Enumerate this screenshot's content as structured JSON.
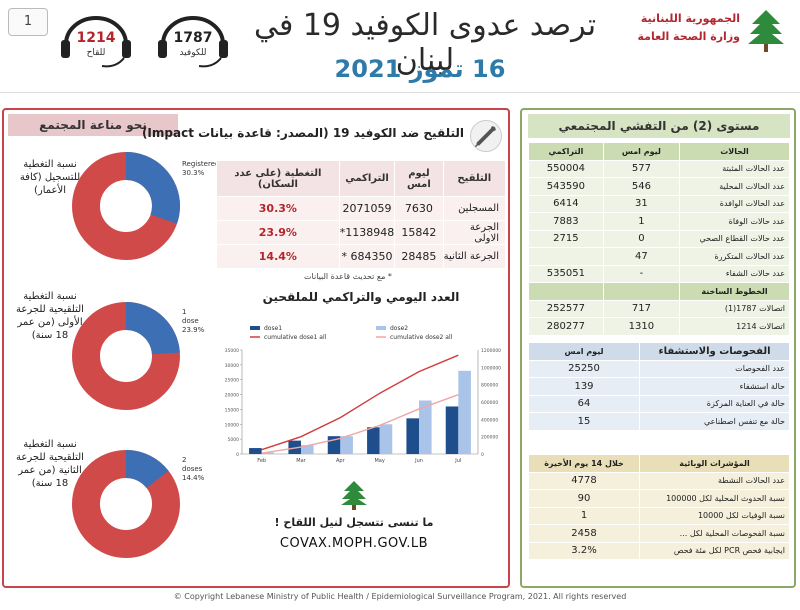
{
  "page_number": "1",
  "hotlines": [
    {
      "number": "1787",
      "label": "للكوفيد"
    },
    {
      "number": "1214",
      "label": "للقاح"
    }
  ],
  "title": "ترصد عدوى الكوفيد 19 في لبنان",
  "date": "16 تموز 2021",
  "ministry": {
    "line1": "الجمهورية اللبنانية",
    "line2": "وزارة الصحة العامة"
  },
  "immunity": {
    "header": "نحو مناعة المجتمع",
    "donuts": [
      {
        "label": "نسبة التغطية للتسجيل (كافة الأعمار)",
        "pct_label_1": "Registered",
        "pct_label_2": "30.3%",
        "fraction": 0.303
      },
      {
        "label": "نسبة التغطية التلقيحية للجرعة الأولى (من عمر 18 سنة)",
        "pct_label_1": "1 dose",
        "pct_label_2": "23.9%",
        "fraction": 0.239
      },
      {
        "label": "نسبة التغطية التلقيحية للجرعة الثانية (من عمر 18 سنة)",
        "pct_label_1": "2 doses",
        "pct_label_2": "14.4%",
        "fraction": 0.144
      }
    ]
  },
  "vaccination": {
    "title": "التلقيح ضد الكوفيد 19 (المصدر: قاعدة بيانات Impact)",
    "headers": [
      "التلقيح",
      "ليوم امس",
      "التراكمي",
      "التغطية (على عدد السكان)"
    ],
    "rows": [
      {
        "label": "المسجلين",
        "yesterday": "7630",
        "cumulative": "2071059",
        "coverage": "30.3%"
      },
      {
        "label": "الجرعة الاولى",
        "yesterday": "15842",
        "cumulative": "1138948*",
        "coverage": "23.9%"
      },
      {
        "label": "الجرعة الثانية",
        "yesterday": "28485",
        "cumulative": "684350 *",
        "coverage": "14.4%"
      }
    ],
    "note": "* مع تحديث قاعدة البيانات"
  },
  "daily_chart_title": "العدد اليومي والتراكمي للملقحين",
  "covax": {
    "message": "ما تنسى تتسجل لنيل اللقاح !",
    "url": "COVAX.MOPH.GOV.LB"
  },
  "community_level": {
    "header": "مستوى (2) من التفشي المجتمعي",
    "table1_headers": [
      "الحالات",
      "ليوم امس",
      "التراكمي"
    ],
    "table1_rows": [
      {
        "label": "عدد الحالات المثبتة",
        "yesterday": "577",
        "cumulative": "550004"
      },
      {
        "label": "عدد الحالات المحلية",
        "yesterday": "546",
        "cumulative": "543590"
      },
      {
        "label": "عدد الحالات الوافدة",
        "yesterday": "31",
        "cumulative": "6414"
      },
      {
        "label": "عدد حالات الوفاة",
        "yesterday": "1",
        "cumulative": "7883"
      },
      {
        "label": "عدد حالات القطاع الصحي",
        "yesterday": "0",
        "cumulative": "2715"
      },
      {
        "label": "عدد الحالات المتكررة",
        "yesterday": "47",
        "cumulative": ""
      },
      {
        "label": "عدد حالات الشفاء",
        "yesterday": "-",
        "cumulative": "535051"
      }
    ],
    "hotline_header": "الخطوط الساخنة",
    "hotline_rows": [
      {
        "label": "اتصالات 1787(1)",
        "yesterday": "717",
        "cumulative": "252577"
      },
      {
        "label": "اتصالات 1214",
        "yesterday": "1310",
        "cumulative": "280277"
      }
    ],
    "tests_header": "الفحوصات والاستشفاء",
    "tests_col": "ليوم امس",
    "tests_rows": [
      {
        "label": "عدد الفحوصات",
        "value": "25250"
      },
      {
        "label": "حالة استشفاء",
        "value": "139"
      },
      {
        "label": "حالة في العناية المركزة",
        "value": "64"
      },
      {
        "label": "حالة مع تنفس اصطناعي",
        "value": "15"
      }
    ],
    "indicators_header": "المؤشرات الوبائية",
    "indicators_col": "خلال 14 يوم الأخيرة",
    "indicators_rows": [
      {
        "label": "عدد الحالات النشطة",
        "value": "4778"
      },
      {
        "label": "نسبة الحدوث المحلية لكل 100000",
        "value": "90"
      },
      {
        "label": "نسبة الوفيات لكل 10000",
        "value": "1"
      },
      {
        "label": "نسبة الفحوصات المحلية لكل ...",
        "value": "2458"
      },
      {
        "label": "ايجابية فحص PCR لكل مئة فحص",
        "value": "3.2%"
      }
    ]
  },
  "copyright": "© Copyright Lebanese Ministry of Public Health / Epidemiological Surveillance Program, 2021. All rights reserved",
  "chart_data": {
    "type": "bar",
    "title": "العدد اليومي والتراكمي للملقحين",
    "categories": [
      "Feb",
      "Mar",
      "Apr",
      "May",
      "Jun",
      "Jul"
    ],
    "series": [
      {
        "name": "dose1",
        "values": [
          2000,
          4500,
          6000,
          9000,
          12000,
          16000
        ]
      },
      {
        "name": "dose2",
        "values": [
          500,
          3000,
          6000,
          10000,
          18000,
          28000
        ]
      },
      {
        "name": "cumulative dose1 all",
        "values": [
          50000,
          200000,
          420000,
          700000,
          950000,
          1140000
        ]
      },
      {
        "name": "cumulative dose2 all",
        "values": [
          10000,
          80000,
          180000,
          330000,
          520000,
          684000
        ]
      }
    ],
    "ylim_left": [
      0,
      35000
    ],
    "ylim_right": [
      0,
      1200000
    ],
    "legend": "top",
    "colors": {
      "dose1": "#1f4e8c",
      "dose2": "#a9c4e8",
      "cum1": "#d13d3d",
      "cum2": "#f2a6a6"
    }
  }
}
